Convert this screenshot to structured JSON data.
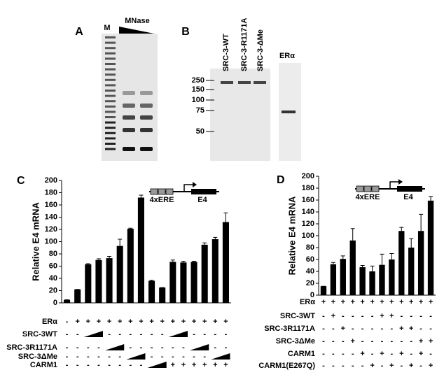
{
  "panel_a": {
    "label": "A",
    "marker": "M",
    "treatment": "MNase"
  },
  "panel_b": {
    "label": "B",
    "lanes": [
      "SRC-3-WT",
      "SRC-3-R1171A",
      "SRC-3-ΔMe"
    ],
    "stain_lane": "ERα",
    "mw_markers": [
      250,
      150,
      100,
      75,
      50
    ]
  },
  "chart_data": [
    {
      "type": "bar",
      "panel_label": "C",
      "ylabel": "Relative E4 mRNA",
      "ylim": [
        0,
        200
      ],
      "yticks": [
        0,
        20,
        40,
        60,
        80,
        100,
        120,
        140,
        160,
        180,
        200
      ],
      "color": "#000000",
      "values": [
        5,
        22,
        63,
        70,
        73,
        93,
        121,
        172,
        36,
        25,
        67,
        66,
        67,
        95,
        104,
        132
      ],
      "errors": [
        0,
        0,
        1,
        2,
        3,
        11,
        1,
        4,
        1,
        0,
        3,
        2,
        1,
        3,
        3,
        15
      ],
      "inset_labels": [
        "4xERE",
        "E4"
      ],
      "conditions": [
        {
          "name": "ERα",
          "cells": [
            "-",
            "+",
            "+",
            "+",
            "+",
            "+",
            "+",
            "+",
            "+",
            "+",
            "+",
            "+",
            "+",
            "+",
            "+",
            "+"
          ]
        },
        {
          "name": "SRC-3WT",
          "cells": [
            "-",
            "-",
            null,
            null,
            "-",
            "-",
            "-",
            "-",
            "-",
            "-",
            null,
            null,
            "-",
            "-",
            "-",
            "-"
          ]
        },
        {
          "name": "SRC-3R1171A",
          "cells": [
            "-",
            "-",
            "-",
            "-",
            null,
            null,
            "-",
            "-",
            "-",
            "-",
            "-",
            "-",
            null,
            null,
            "-",
            "-"
          ]
        },
        {
          "name": "SRC-3ΔMe",
          "cells": [
            "-",
            "-",
            "-",
            "-",
            "-",
            "-",
            null,
            null,
            "-",
            "-",
            "-",
            "-",
            "-",
            "-",
            null,
            null
          ]
        },
        {
          "name": "CARM1",
          "cells": [
            "-",
            "-",
            "-",
            "-",
            "-",
            "-",
            "-",
            "-",
            null,
            null,
            "+",
            "+",
            "+",
            "+",
            "+",
            "+"
          ]
        }
      ]
    },
    {
      "type": "bar",
      "panel_label": "D",
      "ylabel": "Relative E4 mRNA",
      "ylim": [
        0,
        200
      ],
      "yticks": [
        0,
        20,
        40,
        60,
        80,
        100,
        120,
        140,
        160,
        180,
        200
      ],
      "color": "#000000",
      "values": [
        15,
        52,
        61,
        92,
        47,
        40,
        51,
        60,
        108,
        80,
        108,
        159
      ],
      "errors": [
        0,
        3,
        5,
        20,
        3,
        9,
        18,
        10,
        6,
        15,
        28,
        7
      ],
      "inset_labels": [
        "4xERE",
        "E4"
      ],
      "conditions": [
        {
          "name": "ERα",
          "cells": [
            "+",
            "+",
            "+",
            "+",
            "+",
            "+",
            "+",
            "+",
            "+",
            "+",
            "+",
            "+"
          ]
        },
        {
          "name": "SRC-3WT",
          "cells": [
            "-",
            "+",
            "-",
            "-",
            "-",
            "-",
            "+",
            "+",
            "-",
            "-",
            "-",
            "-"
          ]
        },
        {
          "name": "SRC-3R1171A",
          "cells": [
            "-",
            "-",
            "+",
            "-",
            "-",
            "-",
            "-",
            "-",
            "+",
            "+",
            "-",
            "-"
          ]
        },
        {
          "name": "SRC-3ΔMe",
          "cells": [
            "-",
            "-",
            "-",
            "+",
            "-",
            "-",
            "-",
            "-",
            "-",
            "-",
            "+",
            "+"
          ]
        },
        {
          "name": "CARM1",
          "cells": [
            "-",
            "-",
            "-",
            "-",
            "+",
            "-",
            "+",
            "-",
            "+",
            "-",
            "+",
            "-"
          ]
        },
        {
          "name": "CARM1(E267Q)",
          "cells": [
            "-",
            "-",
            "-",
            "-",
            "-",
            "+",
            "-",
            "+",
            "-",
            "+",
            "-",
            "+"
          ]
        }
      ]
    }
  ]
}
